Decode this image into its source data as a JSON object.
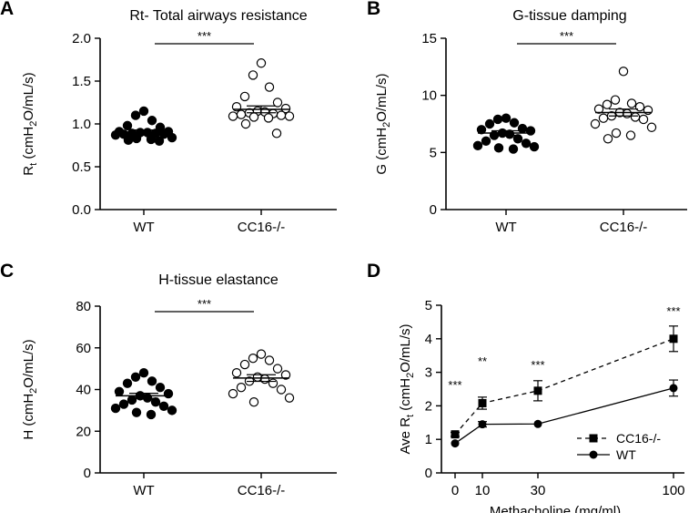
{
  "chart_data": [
    {
      "panel": "A",
      "type": "scatter",
      "title": "Rt- Total airways resistance",
      "ylabel_main": "R",
      "ylabel_sub": "t",
      "ylabel_rest_before": " (cmH",
      "ylabel_rest_sub": "2",
      "ylabel_rest_after": "O/mL/s)",
      "xlabel": "",
      "ylim": [
        0,
        2.0
      ],
      "yticks": [
        0.0,
        0.5,
        1.0,
        1.5,
        2.0
      ],
      "ytick_labels": [
        "0.0",
        "0.5",
        "1.0",
        "1.5",
        "2.0"
      ],
      "categories": [
        "WT",
        "CC16-/-"
      ],
      "series": [
        {
          "name": "WT",
          "marker": "filled",
          "values": [
            1.15,
            1.1,
            1.04,
            0.98,
            0.96,
            0.91,
            0.91,
            0.9,
            0.9,
            0.89,
            0.89,
            0.88,
            0.88,
            0.87,
            0.84,
            0.83,
            0.82,
            0.81,
            0.8
          ],
          "mean": 0.9,
          "sem": 0.03
        },
        {
          "name": "CC16-/-",
          "marker": "open",
          "values": [
            1.71,
            1.57,
            1.43,
            1.32,
            1.25,
            1.2,
            1.18,
            1.15,
            1.14,
            1.13,
            1.12,
            1.11,
            1.1,
            1.09,
            1.09,
            1.08,
            1.07,
            1.0,
            0.89
          ],
          "mean": 1.17,
          "sem": 0.04
        }
      ],
      "significance": "***"
    },
    {
      "panel": "B",
      "type": "scatter",
      "title": "G-tissue damping",
      "ylabel_main": "G (cmH",
      "ylabel_sub": "2",
      "ylabel_rest_after": "O/mL/s)",
      "xlabel": "",
      "ylim": [
        0,
        15
      ],
      "yticks": [
        0,
        5,
        10,
        15
      ],
      "ytick_labels": [
        "0",
        "5",
        "10",
        "15"
      ],
      "categories": [
        "WT",
        "CC16-/-"
      ],
      "series": [
        {
          "name": "WT",
          "marker": "filled",
          "values": [
            8.0,
            7.9,
            7.6,
            7.5,
            7.1,
            7.0,
            6.9,
            6.7,
            6.6,
            6.5,
            6.2,
            6.0,
            5.8,
            5.6,
            5.5,
            5.4,
            5.3
          ],
          "mean": 6.7,
          "sem": 0.2
        },
        {
          "name": "CC16-/-",
          "marker": "open",
          "values": [
            12.1,
            9.6,
            9.3,
            9.2,
            9.0,
            8.8,
            8.7,
            8.5,
            8.4,
            8.2,
            8.1,
            8.0,
            7.9,
            7.5,
            7.2,
            6.7,
            6.5,
            6.2
          ],
          "mean": 8.5,
          "sem": 0.3
        }
      ],
      "significance": "***"
    },
    {
      "panel": "C",
      "type": "scatter",
      "title": "H-tissue elastance",
      "ylabel_main": "H (cmH",
      "ylabel_sub": "2",
      "ylabel_rest_after": "O/mL/s)",
      "xlabel": "",
      "ylim": [
        0,
        80
      ],
      "yticks": [
        0,
        20,
        40,
        60,
        80
      ],
      "ytick_labels": [
        "0",
        "20",
        "40",
        "60",
        "80"
      ],
      "categories": [
        "WT",
        "CC16-/-"
      ],
      "series": [
        {
          "name": "WT",
          "marker": "filled",
          "values": [
            48,
            46,
            44,
            43,
            41,
            39,
            38,
            37,
            36,
            35,
            34,
            33,
            32,
            31,
            30,
            29,
            28
          ],
          "mean": 37,
          "sem": 1.2
        },
        {
          "name": "CC16-/-",
          "marker": "open",
          "values": [
            57,
            55,
            54,
            52,
            50,
            48,
            47,
            46,
            45,
            44,
            43,
            41,
            40,
            38,
            36,
            34
          ],
          "mean": 45.5,
          "sem": 1.6
        }
      ],
      "significance": "***"
    },
    {
      "panel": "D",
      "type": "line",
      "title": "",
      "ylabel_main": "Ave R",
      "ylabel_sub": "t",
      "ylabel_rest_before": " (cmH",
      "ylabel_rest_sub": "2",
      "ylabel_rest_after": "O/mL/s)",
      "xlabel": "Methacholine (mg/ml)",
      "x": [
        0,
        10,
        30,
        100
      ],
      "xtick_labels": [
        "0",
        "10",
        "30",
        "100"
      ],
      "ylim": [
        0,
        5
      ],
      "yticks": [
        0,
        1,
        2,
        3,
        4,
        5
      ],
      "ytick_labels": [
        "0",
        "1",
        "2",
        "3",
        "4",
        "5"
      ],
      "series": [
        {
          "name": "CC16-/-",
          "marker": "square",
          "linestyle": "dashed",
          "values": [
            1.15,
            2.08,
            2.45,
            4.0
          ],
          "errors": [
            0.06,
            0.18,
            0.3,
            0.38
          ]
        },
        {
          "name": "WT",
          "marker": "circle",
          "linestyle": "solid",
          "values": [
            0.88,
            1.45,
            1.46,
            2.53
          ],
          "errors": [
            0.04,
            0.08,
            0.05,
            0.24
          ]
        }
      ],
      "annotations": [
        {
          "x": 0,
          "y": 2.5,
          "text": "***"
        },
        {
          "x": 10,
          "y": 3.2,
          "text": "**"
        },
        {
          "x": 30,
          "y": 3.1,
          "text": "***"
        },
        {
          "x": 100,
          "y": 4.7,
          "text": "***"
        }
      ],
      "legend": "bottom-right"
    }
  ]
}
